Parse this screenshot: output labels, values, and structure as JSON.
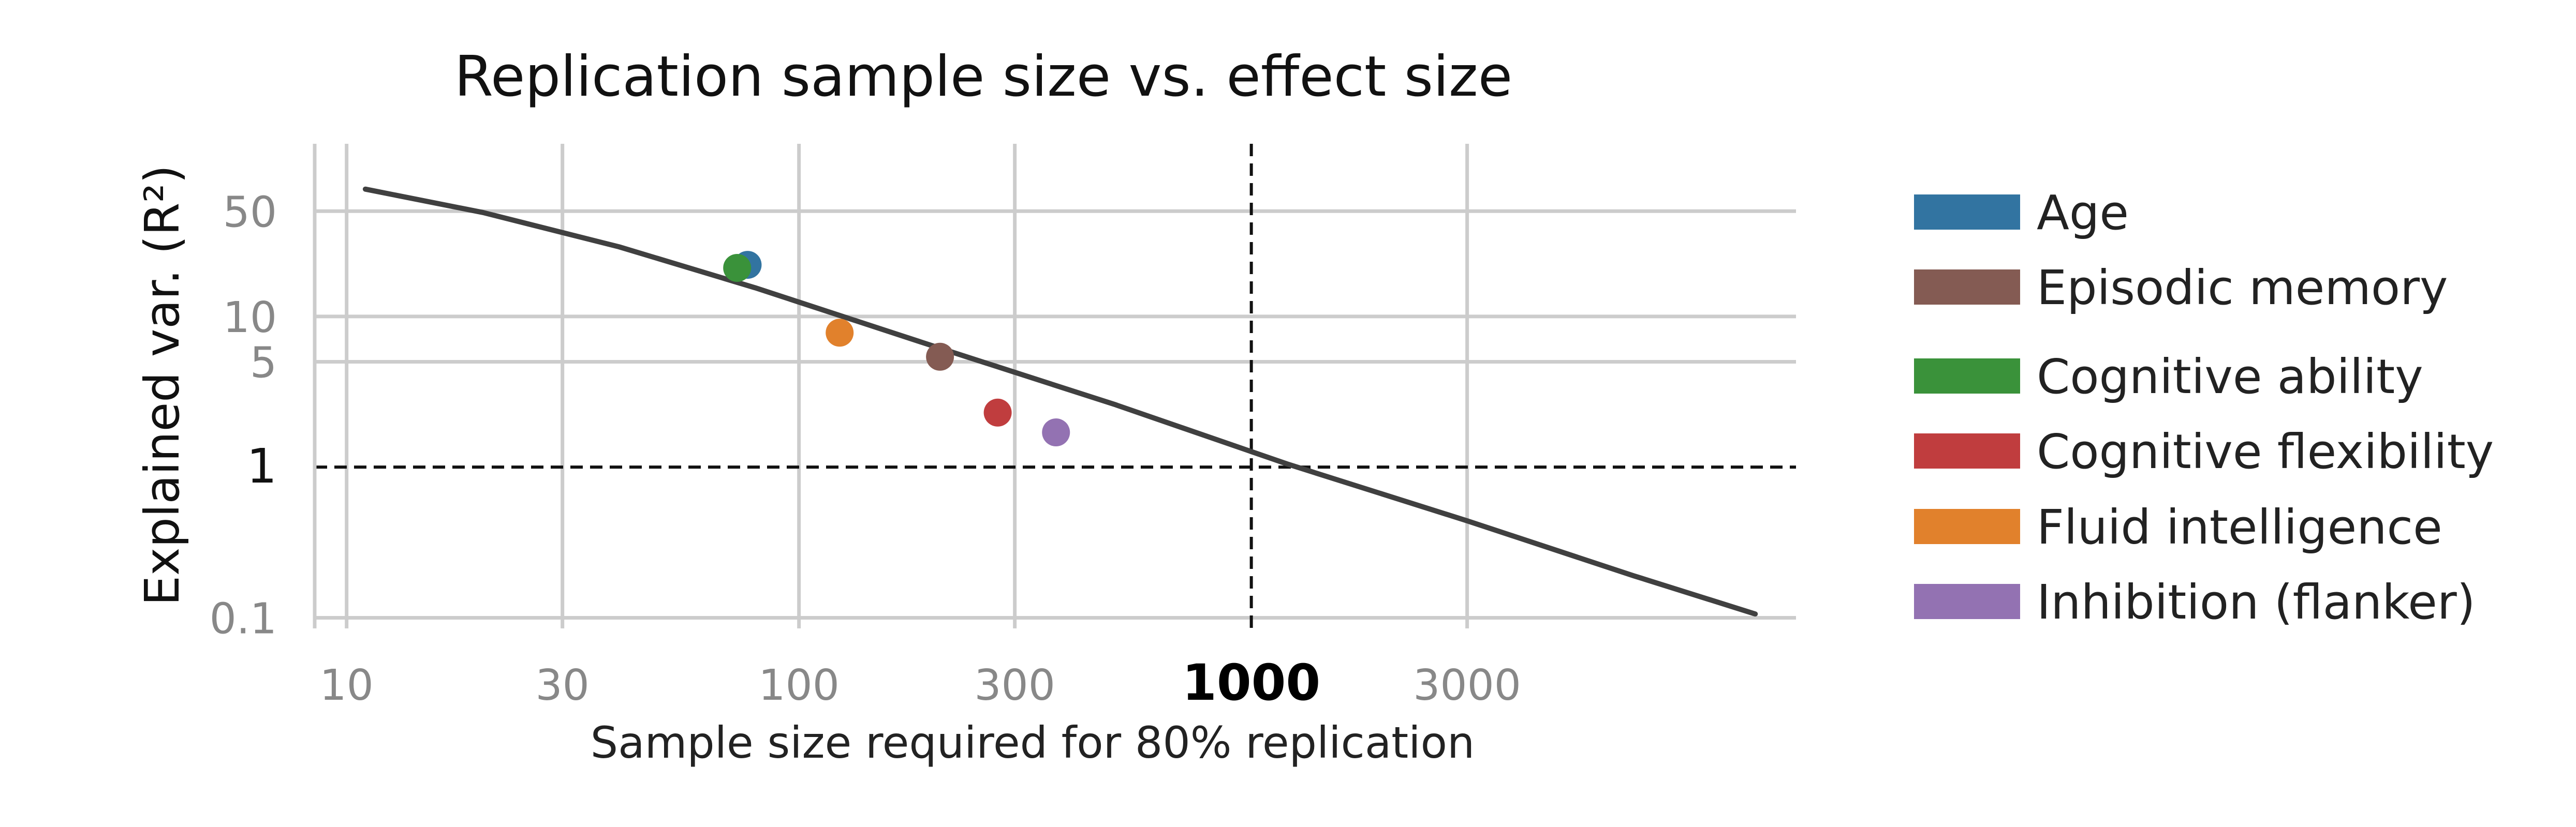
{
  "chart_data": {
    "type": "scatter",
    "title": "Replication sample size vs. effect size",
    "xlabel": "Sample size required for 80% replication",
    "ylabel": "Explained var. (R²)",
    "x_scale": "log",
    "y_scale": "log",
    "xlim": [
      8.5,
      16000
    ],
    "ylim": [
      0.085,
      140
    ],
    "x_ticks": [
      {
        "value": 10,
        "label": "10",
        "emphasis": false
      },
      {
        "value": 30,
        "label": "30",
        "emphasis": false
      },
      {
        "value": 100,
        "label": "100",
        "emphasis": false
      },
      {
        "value": 300,
        "label": "300",
        "emphasis": false
      },
      {
        "value": 1000,
        "label": "1000",
        "emphasis": true
      },
      {
        "value": 3000,
        "label": "3000",
        "emphasis": false
      }
    ],
    "y_ticks": [
      {
        "value": 0.1,
        "label": "0.1",
        "emphasis": false
      },
      {
        "value": 1,
        "label": "1",
        "emphasis": true
      },
      {
        "value": 5,
        "label": "5",
        "emphasis": false
      },
      {
        "value": 10,
        "label": "10",
        "emphasis": false
      },
      {
        "value": 50,
        "label": "50",
        "emphasis": false
      }
    ],
    "grid": true,
    "reference_lines": [
      {
        "axis": "x",
        "value": 1000,
        "style": "dashed"
      },
      {
        "axis": "y",
        "value": 1,
        "style": "dashed"
      }
    ],
    "curve": {
      "color": "#404040",
      "points": [
        [
          11,
          70
        ],
        [
          20,
          49
        ],
        [
          40,
          29
        ],
        [
          80,
          15.5
        ],
        [
          200,
          6.3
        ],
        [
          500,
          2.6
        ],
        [
          1200,
          1.05
        ],
        [
          3000,
          0.44
        ],
        [
          7000,
          0.19
        ],
        [
          13000,
          0.106
        ]
      ]
    },
    "series": [
      {
        "name": "Age",
        "color": "#3274A1",
        "points": [
          {
            "x": 77,
            "y": 22
          }
        ]
      },
      {
        "name": "Episodic memory",
        "color": "#845B53",
        "points": [
          {
            "x": 205,
            "y": 5.4
          }
        ]
      },
      {
        "name": "Cognitive ability",
        "color": "#3A923A",
        "points": [
          {
            "x": 73,
            "y": 21
          }
        ]
      },
      {
        "name": "Cognitive flexibility",
        "color": "#C03D3E",
        "points": [
          {
            "x": 275,
            "y": 2.3
          }
        ]
      },
      {
        "name": "Fluid intelligence",
        "color": "#E1812C",
        "points": [
          {
            "x": 123,
            "y": 7.8
          }
        ]
      },
      {
        "name": "Inhibition (flanker)",
        "color": "#9372B2",
        "points": [
          {
            "x": 370,
            "y": 1.7
          }
        ]
      }
    ],
    "legend_position": "right"
  }
}
